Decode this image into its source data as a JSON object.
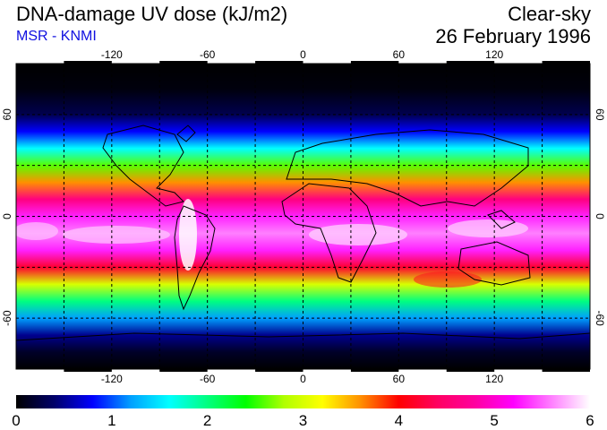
{
  "header": {
    "title": "DNA-damage UV dose (kJ/m2)",
    "source": "MSR - KNMI",
    "mode": "Clear-sky",
    "date": "26 February 1996"
  },
  "colors": {
    "source_text": "#1010e0",
    "colormap": [
      "#000000",
      "#00006a",
      "#0000ff",
      "#00a0ff",
      "#00ffff",
      "#00ff80",
      "#00ff00",
      "#b0ff00",
      "#ffff00",
      "#ff9000",
      "#ff0000",
      "#ff0060",
      "#ff00a0",
      "#ff00ff",
      "#ff80ff",
      "#ffffff"
    ]
  },
  "map": {
    "lon_range": [
      -180,
      180
    ],
    "lat_range": [
      -90,
      90
    ],
    "lon_ticks": [
      -120,
      -60,
      0,
      60,
      120
    ],
    "lat_ticks": [
      -60,
      0,
      60
    ],
    "lon_tick_labels": [
      "-120",
      "-60",
      "0",
      "60",
      "120"
    ],
    "lat_tick_labels": [
      "-60",
      "0",
      "60"
    ],
    "grid_lon_step": 30,
    "grid_lat_step": 30,
    "dose_profile": [
      {
        "lat": 90,
        "dose": 0.0
      },
      {
        "lat": 75,
        "dose": 0.05
      },
      {
        "lat": 60,
        "dose": 0.3
      },
      {
        "lat": 50,
        "dose": 0.8
      },
      {
        "lat": 40,
        "dose": 1.6
      },
      {
        "lat": 30,
        "dose": 2.6
      },
      {
        "lat": 20,
        "dose": 3.6
      },
      {
        "lat": 10,
        "dose": 4.6
      },
      {
        "lat": 0,
        "dose": 5.3
      },
      {
        "lat": -10,
        "dose": 5.6
      },
      {
        "lat": -20,
        "dose": 5.3
      },
      {
        "lat": -30,
        "dose": 4.2
      },
      {
        "lat": -40,
        "dose": 3.0
      },
      {
        "lat": -50,
        "dose": 2.0
      },
      {
        "lat": -60,
        "dose": 1.2
      },
      {
        "lat": -70,
        "dose": 0.5
      },
      {
        "lat": -80,
        "dose": 0.15
      },
      {
        "lat": -90,
        "dose": 0.0
      }
    ]
  },
  "colorbar": {
    "min": 0,
    "max": 6,
    "tick_labels": [
      "0",
      "1",
      "2",
      "3",
      "4",
      "5",
      "6"
    ]
  }
}
